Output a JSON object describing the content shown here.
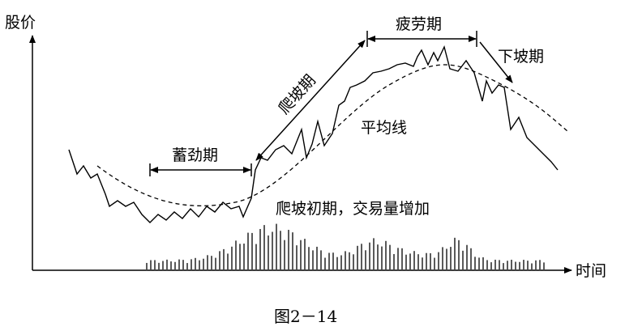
{
  "axes": {
    "y_label": "股价",
    "x_label": "时间"
  },
  "phases": {
    "accumulate": "蓄劲期",
    "climb": "爬坡期",
    "fatigue": "疲劳期",
    "decline": "下坡期"
  },
  "moving_average": "平均线",
  "annotation": "爬坡初期，交易量增加",
  "caption": "图2－14"
}
